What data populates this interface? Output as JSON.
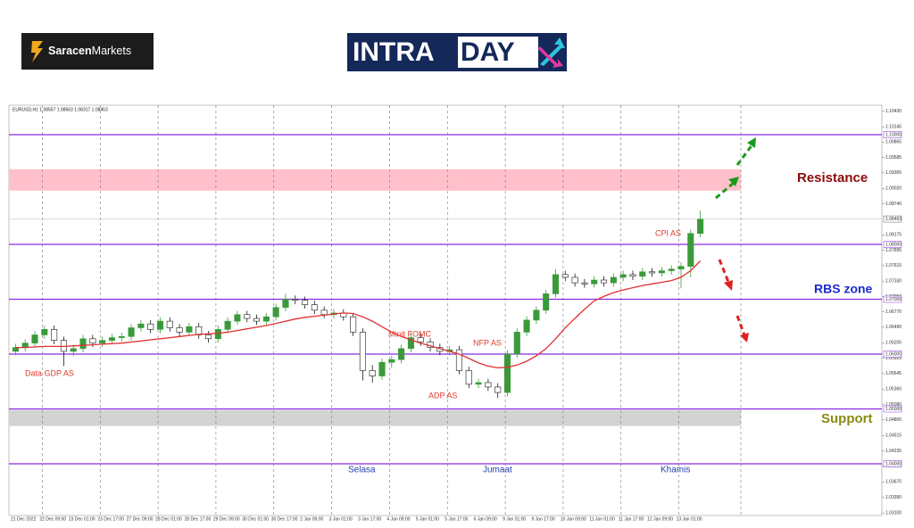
{
  "brand": {
    "broker_a": "Saracen",
    "broker_b": "Markets",
    "logo_a": "INTRA",
    "logo_b": "DAY"
  },
  "chart_data": {
    "type": "candlestick",
    "header": "EURUSD,H1  1.08557 1.08563 1.08317 1.08463",
    "ylim": [
      1.03057,
      1.10537
    ],
    "yticks": [
      {
        "value": 1.1043,
        "label": "1.10430"
      },
      {
        "value": 1.10145,
        "label": "1.10145"
      },
      {
        "value": 1.09865,
        "label": "1.09865"
      },
      {
        "value": 1.09585,
        "label": "1.09585"
      },
      {
        "value": 1.09305,
        "label": "1.09305"
      },
      {
        "value": 1.0902,
        "label": "1.09020"
      },
      {
        "value": 1.0874,
        "label": "1.08740"
      },
      {
        "value": 1.08175,
        "label": "1.08175"
      },
      {
        "value": 1.07895,
        "label": "1.07895"
      },
      {
        "value": 1.07615,
        "label": "1.07615"
      },
      {
        "value": 1.0733,
        "label": "1.07330"
      },
      {
        "value": 1.0705,
        "label": "1.07050"
      },
      {
        "value": 1.0677,
        "label": "1.06770"
      },
      {
        "value": 1.0649,
        "label": "1.06490"
      },
      {
        "value": 1.06205,
        "label": "1.06205"
      },
      {
        "value": 1.05925,
        "label": "1.05925"
      },
      {
        "value": 1.05645,
        "label": "1.05645"
      },
      {
        "value": 1.0536,
        "label": "1.05360"
      },
      {
        "value": 1.0508,
        "label": "1.05080"
      },
      {
        "value": 1.048,
        "label": "1.04800"
      },
      {
        "value": 1.04515,
        "label": "1.04515"
      },
      {
        "value": 1.04235,
        "label": "1.04235"
      },
      {
        "value": 1.03955,
        "label": "1.03955"
      },
      {
        "value": 1.0367,
        "label": "1.03670"
      },
      {
        "value": 1.0339,
        "label": "1.03390"
      },
      {
        "value": 1.031,
        "label": "1.03100"
      }
    ],
    "levels": [
      {
        "value": 1.1,
        "label": "1.10000"
      },
      {
        "value": 1.08,
        "label": "1.08000"
      },
      {
        "value": 1.07,
        "label": "1.07000"
      },
      {
        "value": 1.06,
        "label": "1.06000"
      },
      {
        "value": 1.05,
        "label": "1.05000"
      },
      {
        "value": 1.04,
        "label": "1.04000"
      }
    ],
    "level_color": "#8a2be2",
    "current_price": {
      "value": 1.08463,
      "label": "1.08463"
    },
    "resistance_zone": [
      1.0898,
      1.0937
    ],
    "resistance_color": "#ffc0cb",
    "support_zone": [
      1.0469,
      1.0498
    ],
    "support_color": "#d3d3d3",
    "x_labels": [
      "21 Dec 2022",
      "22 Dec 09:00",
      "23 Dec 01:00",
      "23 Dec 17:00",
      "27 Dec 09:00",
      "28 Dec 01:00",
      "28 Dec 17:00",
      "29 Dec 09:00",
      "30 Dec 01:00",
      "30 Dec 17:00",
      "2 Jan 09:00",
      "3 Jan 01:00",
      "3 Jan 17:00",
      "4 Jan 09:00",
      "5 Jan 01:00",
      "5 Jan 17:00",
      "6 Jan 09:00",
      "9 Jan 01:00",
      "9 Jan 17:00",
      "10 Jan 09:00",
      "11 Jan 01:00",
      "11 Jan 17:00",
      "12 Jan 09:00",
      "13 Jan 01:00"
    ],
    "up_color": "#3a9a3a",
    "down_color": "#1a1a1a",
    "ma_color": "#e03030",
    "candles": [
      [
        1.0605,
        1.0619,
        1.0598,
        1.0612
      ],
      [
        1.0612,
        1.0627,
        1.0605,
        1.062
      ],
      [
        1.062,
        1.0642,
        1.0613,
        1.0635
      ],
      [
        1.0635,
        1.0652,
        1.0628,
        1.0645
      ],
      [
        1.0645,
        1.0652,
        1.0618,
        1.0625
      ],
      [
        1.0625,
        1.0632,
        1.0578,
        1.0605
      ],
      [
        1.0605,
        1.0617,
        1.0596,
        1.061
      ],
      [
        1.061,
        1.0635,
        1.0603,
        1.0628
      ],
      [
        1.0628,
        1.0635,
        1.0613,
        1.062
      ],
      [
        1.062,
        1.0632,
        1.0613,
        1.0625
      ],
      [
        1.0625,
        1.0637,
        1.0618,
        1.063
      ],
      [
        1.063,
        1.0639,
        1.0623,
        1.0632
      ],
      [
        1.0632,
        1.0655,
        1.0625,
        1.0648
      ],
      [
        1.0648,
        1.0662,
        1.0641,
        1.0655
      ],
      [
        1.0655,
        1.0662,
        1.0638,
        1.0645
      ],
      [
        1.0645,
        1.0667,
        1.0638,
        1.066
      ],
      [
        1.066,
        1.0667,
        1.0641,
        1.0648
      ],
      [
        1.0648,
        1.0655,
        1.0633,
        1.064
      ],
      [
        1.064,
        1.0657,
        1.0633,
        1.065
      ],
      [
        1.065,
        1.0657,
        1.0628,
        1.0635
      ],
      [
        1.0635,
        1.0642,
        1.0621,
        1.0628
      ],
      [
        1.0628,
        1.0652,
        1.0621,
        1.0645
      ],
      [
        1.0645,
        1.0667,
        1.0638,
        1.066
      ],
      [
        1.066,
        1.0679,
        1.0653,
        1.0672
      ],
      [
        1.0672,
        1.0679,
        1.0658,
        1.0665
      ],
      [
        1.0665,
        1.0672,
        1.0653,
        1.066
      ],
      [
        1.066,
        1.0675,
        1.0653,
        1.0668
      ],
      [
        1.0668,
        1.0692,
        1.0661,
        1.0685
      ],
      [
        1.0685,
        1.071,
        1.0678,
        1.07
      ],
      [
        1.07,
        1.0707,
        1.0691,
        1.0698
      ],
      [
        1.0698,
        1.0705,
        1.0683,
        1.069
      ],
      [
        1.069,
        1.0697,
        1.0673,
        1.068
      ],
      [
        1.068,
        1.0687,
        1.0665,
        1.0672
      ],
      [
        1.0672,
        1.0682,
        1.0665,
        1.0675
      ],
      [
        1.0675,
        1.0682,
        1.0661,
        1.0668
      ],
      [
        1.0668,
        1.0675,
        1.0633,
        1.064
      ],
      [
        1.064,
        1.0647,
        1.0552,
        1.057
      ],
      [
        1.057,
        1.058,
        1.0548,
        1.056
      ],
      [
        1.056,
        1.0592,
        1.0553,
        1.0585
      ],
      [
        1.0585,
        1.0597,
        1.0575,
        1.059
      ],
      [
        1.059,
        1.0617,
        1.0583,
        1.061
      ],
      [
        1.061,
        1.064,
        1.0603,
        1.063
      ],
      [
        1.063,
        1.0637,
        1.0615,
        1.0622
      ],
      [
        1.0622,
        1.0629,
        1.0605,
        1.0612
      ],
      [
        1.0612,
        1.0619,
        1.0598,
        1.0605
      ],
      [
        1.0605,
        1.0615,
        1.0598,
        1.0608
      ],
      [
        1.0608,
        1.0615,
        1.0563,
        1.057
      ],
      [
        1.057,
        1.0577,
        1.0538,
        1.0545
      ],
      [
        1.0545,
        1.0555,
        1.0538,
        1.0548
      ],
      [
        1.0548,
        1.0555,
        1.0533,
        1.054
      ],
      [
        1.054,
        1.0547,
        1.052,
        1.053
      ],
      [
        1.053,
        1.0607,
        1.0523,
        1.06
      ],
      [
        1.06,
        1.0647,
        1.0593,
        1.064
      ],
      [
        1.064,
        1.0669,
        1.0633,
        1.0662
      ],
      [
        1.0662,
        1.0687,
        1.0655,
        1.068
      ],
      [
        1.068,
        1.0717,
        1.0673,
        1.071
      ],
      [
        1.071,
        1.0755,
        1.0703,
        1.0745
      ],
      [
        1.0745,
        1.0752,
        1.0733,
        1.074
      ],
      [
        1.074,
        1.0747,
        1.0723,
        1.073
      ],
      [
        1.073,
        1.0737,
        1.0721,
        1.0728
      ],
      [
        1.0728,
        1.0742,
        1.0721,
        1.0735
      ],
      [
        1.0735,
        1.0742,
        1.0723,
        1.073
      ],
      [
        1.073,
        1.0747,
        1.0723,
        1.074
      ],
      [
        1.074,
        1.0752,
        1.0733,
        1.0745
      ],
      [
        1.0745,
        1.0752,
        1.0735,
        1.0742
      ],
      [
        1.0742,
        1.0757,
        1.0735,
        1.075
      ],
      [
        1.075,
        1.0757,
        1.0741,
        1.0748
      ],
      [
        1.0748,
        1.0759,
        1.0741,
        1.0752
      ],
      [
        1.0752,
        1.0762,
        1.0745,
        1.0755
      ],
      [
        1.0755,
        1.0767,
        1.072,
        1.076
      ],
      [
        1.076,
        1.0827,
        1.074,
        1.082
      ],
      [
        1.082,
        1.0862,
        1.0813,
        1.0846
      ]
    ],
    "moving_average": [
      1.0612,
      1.0612,
      1.0613,
      1.0614,
      1.0614,
      1.0614,
      1.0615,
      1.0616,
      1.0617,
      1.0618,
      1.0619,
      1.062,
      1.0622,
      1.0624,
      1.0626,
      1.0628,
      1.063,
      1.0632,
      1.0634,
      1.0636,
      1.0637,
      1.0638,
      1.064,
      1.0643,
      1.0646,
      1.0649,
      1.0652,
      1.0656,
      1.066,
      1.0664,
      1.0667,
      1.0669,
      1.0671,
      1.0673,
      1.0675,
      1.0674,
      1.0668,
      1.066,
      1.065,
      1.064,
      1.0632,
      1.0626,
      1.062,
      1.0615,
      1.061,
      1.0605,
      1.06,
      1.0592,
      1.0584,
      1.0578,
      1.0575,
      1.0576,
      1.058,
      1.0587,
      1.0597,
      1.061,
      1.0628,
      1.0648,
      1.0665,
      1.0682,
      1.0697,
      1.0705,
      1.0712,
      1.0717,
      1.0721,
      1.0725,
      1.0728,
      1.0731,
      1.0734,
      1.074,
      1.0752,
      1.077
    ],
    "annotations": {
      "resistance": "Resistance",
      "rbs": "RBS zone",
      "support": "Support",
      "day_1": "Selasa",
      "day_2": "Jumaat",
      "day_3": "Khamis",
      "gdp": "Data GDP AS",
      "fomc": "Minit FOMC",
      "nfp": "NFP AS",
      "adp": "ADP AS",
      "cpi": "CPI AS"
    }
  }
}
